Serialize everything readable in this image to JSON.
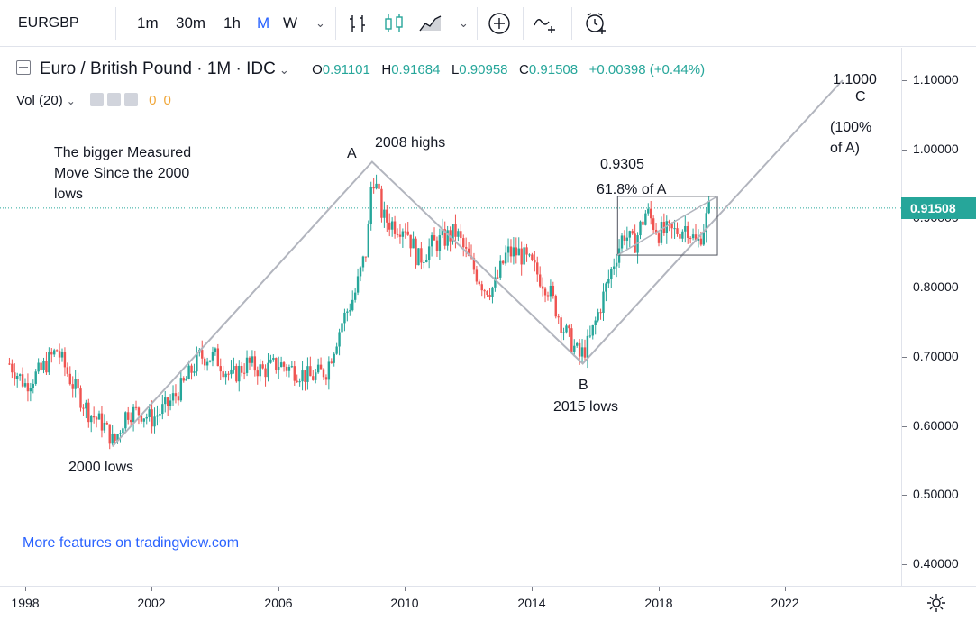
{
  "toolbar": {
    "symbol": "EURGBP",
    "intervals": [
      "1m",
      "30m",
      "1h",
      "M",
      "W"
    ],
    "active_interval": "M",
    "icons": [
      "bar-style-icon",
      "candle-style-icon",
      "area-style-icon",
      "chevron-down-icon",
      "add-compare-icon",
      "indicators-icon",
      "alert-clock-icon"
    ]
  },
  "legend": {
    "title": "Euro / British Pound · 1M · IDC",
    "open_label": "O",
    "open": "0.91101",
    "high_label": "H",
    "high": "0.91684",
    "low_label": "L",
    "low": "0.90958",
    "close_label": "C",
    "close": "0.91508",
    "change": "+0.00398 (+0.44%)",
    "vol_label": "Vol (20)",
    "vol_a": "0",
    "vol_b": "0"
  },
  "annotations": {
    "measured_move": "The bigger Measured\nMove Since the 2000\nlows",
    "a_label": "A",
    "highs_2008": "2008 highs",
    "fib_price": "0.9305",
    "fib_text": "61.8% of A",
    "c_price": "1.1000",
    "c_label": "C",
    "c_text": "(100%\nof A)",
    "b_label": "B",
    "lows_2015": "2015 lows",
    "lows_2000": "2000 lows"
  },
  "watermark": "More features on tradingview.com",
  "price_axis": {
    "labels": [
      "1.10000",
      "1.00000",
      "0.90000",
      "0.80000",
      "0.70000",
      "0.60000",
      "0.50000",
      "0.40000"
    ],
    "current_price": "0.91508"
  },
  "time_axis": {
    "labels": [
      "1998",
      "2002",
      "2006",
      "2010",
      "2014",
      "2018",
      "2022"
    ]
  },
  "colors": {
    "up": "#26a69a",
    "down": "#ef5350",
    "accent": "#2962ff",
    "drawing": "#b2b5be"
  },
  "chart_data": {
    "type": "candlestick",
    "symbol": "EURGBP",
    "interval": "1M",
    "x_range": [
      1997.5,
      2024.5
    ],
    "y_range": [
      0.38,
      1.15
    ],
    "points": [
      {
        "x": 1997.5,
        "y": 0.69
      },
      {
        "x": 1998.0,
        "y": 0.66
      },
      {
        "x": 1998.5,
        "y": 0.68
      },
      {
        "x": 1999.0,
        "y": 0.71
      },
      {
        "x": 1999.5,
        "y": 0.66
      },
      {
        "x": 2000.0,
        "y": 0.62
      },
      {
        "x": 2000.5,
        "y": 0.6
      },
      {
        "x": 2000.8,
        "y": 0.575
      },
      {
        "x": 2001.2,
        "y": 0.62
      },
      {
        "x": 2001.6,
        "y": 0.62
      },
      {
        "x": 2002.0,
        "y": 0.61
      },
      {
        "x": 2002.5,
        "y": 0.63
      },
      {
        "x": 2003.0,
        "y": 0.66
      },
      {
        "x": 2003.5,
        "y": 0.7
      },
      {
        "x": 2004.0,
        "y": 0.7
      },
      {
        "x": 2004.5,
        "y": 0.67
      },
      {
        "x": 2005.0,
        "y": 0.69
      },
      {
        "x": 2005.5,
        "y": 0.68
      },
      {
        "x": 2006.0,
        "y": 0.69
      },
      {
        "x": 2006.5,
        "y": 0.68
      },
      {
        "x": 2007.0,
        "y": 0.67
      },
      {
        "x": 2007.5,
        "y": 0.68
      },
      {
        "x": 2008.0,
        "y": 0.75
      },
      {
        "x": 2008.4,
        "y": 0.79
      },
      {
        "x": 2008.8,
        "y": 0.86
      },
      {
        "x": 2008.95,
        "y": 0.97
      },
      {
        "x": 2009.3,
        "y": 0.9
      },
      {
        "x": 2009.7,
        "y": 0.89
      },
      {
        "x": 2010.0,
        "y": 0.89
      },
      {
        "x": 2010.4,
        "y": 0.84
      },
      {
        "x": 2010.8,
        "y": 0.86
      },
      {
        "x": 2011.2,
        "y": 0.87
      },
      {
        "x": 2011.6,
        "y": 0.88
      },
      {
        "x": 2012.0,
        "y": 0.84
      },
      {
        "x": 2012.5,
        "y": 0.8
      },
      {
        "x": 2012.8,
        "y": 0.8
      },
      {
        "x": 2013.2,
        "y": 0.85
      },
      {
        "x": 2013.6,
        "y": 0.85
      },
      {
        "x": 2014.0,
        "y": 0.83
      },
      {
        "x": 2014.5,
        "y": 0.8
      },
      {
        "x": 2015.0,
        "y": 0.74
      },
      {
        "x": 2015.5,
        "y": 0.7
      },
      {
        "x": 2015.8,
        "y": 0.72
      },
      {
        "x": 2016.2,
        "y": 0.78
      },
      {
        "x": 2016.6,
        "y": 0.84
      },
      {
        "x": 2016.9,
        "y": 0.88
      },
      {
        "x": 2017.2,
        "y": 0.86
      },
      {
        "x": 2017.6,
        "y": 0.91
      },
      {
        "x": 2018.0,
        "y": 0.88
      },
      {
        "x": 2018.5,
        "y": 0.88
      },
      {
        "x": 2018.9,
        "y": 0.89
      },
      {
        "x": 2019.2,
        "y": 0.86
      },
      {
        "x": 2019.5,
        "y": 0.9
      },
      {
        "x": 2019.6,
        "y": 0.915
      }
    ],
    "drawings": {
      "measured_move_path": [
        {
          "x": 2000.75,
          "y": 0.57
        },
        {
          "x": 2008.95,
          "y": 0.982
        },
        {
          "x": 2015.6,
          "y": 0.69
        },
        {
          "x": 2023.8,
          "y": 1.1
        }
      ],
      "consolidation_box": {
        "x1": 2016.7,
        "x2": 2019.85,
        "y1": 0.847,
        "y2": 0.932
      },
      "box_trendline": [
        {
          "x": 2016.7,
          "y": 0.847
        },
        {
          "x": 2019.85,
          "y": 0.932
        }
      ]
    },
    "current_price_line": 0.91508
  }
}
